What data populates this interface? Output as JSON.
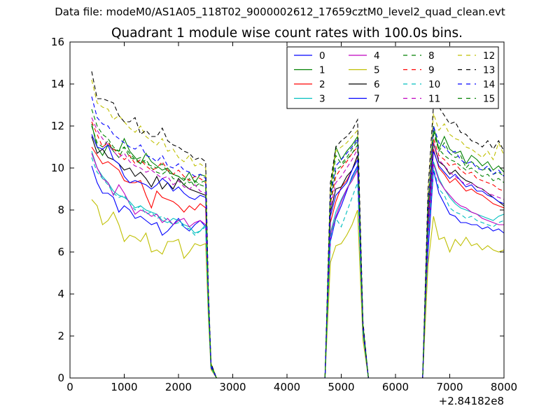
{
  "suptitle": "Data file: modeM0/AS1A05_118T02_9000002612_17659cztM0_level2_quad_clean.evt",
  "chart_data": {
    "type": "line",
    "title": "Quadrant 1 module wise count rates with 100.0s bins.",
    "xlabel": "",
    "ylabel": "",
    "x_offset_label": "+2.84182e8",
    "xlim": [
      0,
      8000
    ],
    "ylim": [
      0,
      16
    ],
    "xticks": [
      0,
      1000,
      2000,
      3000,
      4000,
      5000,
      6000,
      7000,
      8000
    ],
    "yticks": [
      0,
      2,
      4,
      6,
      8,
      10,
      12,
      14,
      16
    ],
    "legend_position": "top-right",
    "grid": false,
    "x": [
      400,
      500,
      600,
      700,
      800,
      900,
      1000,
      1100,
      1200,
      1300,
      1400,
      1500,
      1600,
      1700,
      1800,
      1900,
      2000,
      2100,
      2200,
      2300,
      2400,
      2500,
      2550,
      2600,
      2700,
      2800,
      4600,
      4700,
      4800,
      4900,
      5000,
      5100,
      5200,
      5300,
      5400,
      5500,
      6400,
      6500,
      6600,
      6700,
      6800,
      6900,
      7000,
      7100,
      7200,
      7300,
      7400,
      7500,
      7600,
      7700,
      7800,
      7900,
      8000
    ],
    "series": [
      {
        "name": "0",
        "color": "#0000ff",
        "dash": "solid",
        "values": [
          10.1,
          9.3,
          8.8,
          8.8,
          8.6,
          7.9,
          8.2,
          8.0,
          7.6,
          7.7,
          7.5,
          7.3,
          7.4,
          6.8,
          7.0,
          7.3,
          7.6,
          7.2,
          7.0,
          7.3,
          7.5,
          7.2,
          3.2,
          0.5,
          0,
          0,
          0,
          0,
          6.5,
          7.6,
          8.2,
          8.9,
          9.6,
          10.1,
          2.2,
          0,
          0,
          0,
          6.0,
          9.9,
          8.8,
          8.3,
          7.8,
          7.7,
          7.4,
          7.4,
          7.3,
          7.3,
          7.1,
          7.2,
          7.0,
          7.1,
          6.9
        ]
      },
      {
        "name": "1",
        "color": "#008000",
        "dash": "solid",
        "values": [
          12.1,
          11.0,
          10.6,
          11.1,
          10.9,
          10.8,
          11.4,
          10.8,
          10.5,
          10.2,
          10.7,
          10.3,
          10.1,
          9.9,
          10.0,
          9.7,
          9.6,
          9.4,
          9.8,
          9.3,
          9.7,
          9.6,
          3.8,
          0.6,
          0,
          0,
          0,
          0,
          8.9,
          11.0,
          10.4,
          10.8,
          11.1,
          11.5,
          2.4,
          0,
          0,
          0,
          8.0,
          12.0,
          10.9,
          11.5,
          10.9,
          10.7,
          10.8,
          10.2,
          10.6,
          10.4,
          10.1,
          10.3,
          9.9,
          10.1,
          9.8
        ]
      },
      {
        "name": "2",
        "color": "#ff0000",
        "dash": "solid",
        "values": [
          11.0,
          10.6,
          10.2,
          10.3,
          10.1,
          9.9,
          9.4,
          9.3,
          9.3,
          9.4,
          8.7,
          8.1,
          8.9,
          8.6,
          8.5,
          8.4,
          8.2,
          7.9,
          8.2,
          8.0,
          8.3,
          8.1,
          3.5,
          0.5,
          0,
          0,
          0,
          0,
          7.4,
          8.4,
          9.1,
          9.4,
          9.9,
          10.6,
          2.3,
          0,
          0,
          0,
          7.0,
          10.9,
          10.0,
          9.7,
          9.3,
          9.5,
          9.2,
          8.9,
          9.0,
          8.8,
          8.7,
          8.5,
          8.3,
          8.2,
          8.1
        ]
      },
      {
        "name": "3",
        "color": "#00bfbf",
        "dash": "solid",
        "values": [
          10.8,
          10.0,
          9.6,
          9.3,
          8.9,
          8.7,
          8.6,
          8.4,
          8.1,
          8.2,
          8.0,
          7.9,
          7.8,
          7.5,
          7.4,
          7.6,
          7.5,
          7.3,
          7.2,
          6.9,
          7.0,
          7.3,
          3.3,
          0.5,
          0,
          0,
          0,
          0,
          6.9,
          7.9,
          8.5,
          9.0,
          9.5,
          10.0,
          2.2,
          0,
          0,
          0,
          6.8,
          10.3,
          9.5,
          9.0,
          8.6,
          8.3,
          8.1,
          8.0,
          7.9,
          7.8,
          7.7,
          7.6,
          7.5,
          7.7,
          7.8
        ]
      },
      {
        "name": "4",
        "color": "#bf00bf",
        "dash": "solid",
        "values": [
          10.7,
          10.0,
          9.5,
          9.3,
          8.7,
          9.2,
          8.8,
          8.3,
          7.8,
          8.0,
          7.9,
          7.7,
          7.8,
          7.4,
          7.6,
          7.3,
          7.5,
          7.6,
          7.2,
          7.4,
          7.5,
          7.3,
          3.3,
          0.5,
          0,
          0,
          0,
          0,
          6.8,
          7.7,
          8.4,
          9.0,
          9.4,
          9.9,
          2.2,
          0,
          0,
          0,
          6.7,
          10.2,
          9.4,
          9.0,
          8.7,
          8.4,
          8.2,
          8.1,
          7.9,
          7.8,
          7.6,
          7.5,
          7.4,
          7.3,
          7.3
        ]
      },
      {
        "name": "5",
        "color": "#bfbf00",
        "dash": "solid",
        "values": [
          8.5,
          8.2,
          7.3,
          7.5,
          7.9,
          7.3,
          6.5,
          6.8,
          6.7,
          6.5,
          6.9,
          6.0,
          6.1,
          5.9,
          6.5,
          6.5,
          6.6,
          5.7,
          6.0,
          6.4,
          6.3,
          6.4,
          2.9,
          0.4,
          0,
          0,
          0,
          0,
          5.5,
          6.3,
          6.4,
          6.8,
          7.3,
          8.0,
          1.8,
          0,
          0,
          0,
          5.4,
          7.7,
          6.6,
          6.7,
          6.0,
          6.6,
          6.3,
          6.7,
          6.3,
          6.4,
          6.1,
          6.3,
          6.1,
          6.0,
          6.1
        ]
      },
      {
        "name": "6",
        "color": "#000000",
        "dash": "solid",
        "values": [
          11.5,
          10.7,
          10.9,
          10.5,
          10.4,
          10.2,
          9.9,
          10.0,
          9.6,
          9.8,
          9.5,
          9.1,
          9.6,
          9.0,
          9.3,
          9.0,
          9.5,
          9.2,
          9.0,
          8.9,
          8.8,
          8.7,
          3.7,
          0.5,
          0,
          0,
          0,
          0,
          7.9,
          9.0,
          9.1,
          9.6,
          9.9,
          10.6,
          2.3,
          0,
          0,
          0,
          7.5,
          11.2,
          10.3,
          10.1,
          9.7,
          9.9,
          9.6,
          9.4,
          9.3,
          9.1,
          9.0,
          8.8,
          8.6,
          8.4,
          8.2
        ]
      },
      {
        "name": "7",
        "color": "#0000ff",
        "dash": "solid",
        "values": [
          11.6,
          11.0,
          10.9,
          11.1,
          10.4,
          10.2,
          9.6,
          9.3,
          9.4,
          9.3,
          9.2,
          9.0,
          9.2,
          9.5,
          9.3,
          8.9,
          9.1,
          8.8,
          8.6,
          8.5,
          8.7,
          8.6,
          3.7,
          0.5,
          0,
          0,
          0,
          0,
          7.7,
          8.7,
          9.0,
          9.3,
          9.9,
          10.4,
          2.3,
          0,
          0,
          0,
          7.4,
          10.8,
          10.1,
          9.8,
          9.5,
          9.7,
          9.4,
          9.1,
          9.2,
          8.9,
          8.9,
          8.7,
          8.6,
          8.4,
          8.3
        ]
      },
      {
        "name": "8",
        "color": "#008000",
        "dash": "dashed",
        "values": [
          12.0,
          11.2,
          11.0,
          11.3,
          10.8,
          10.5,
          11.0,
          10.5,
          10.4,
          10.2,
          10.4,
          10.0,
          9.8,
          9.7,
          9.9,
          9.5,
          9.4,
          9.2,
          9.5,
          9.1,
          9.3,
          9.4,
          3.8,
          0.6,
          0,
          0,
          0,
          0,
          8.7,
          10.6,
          10.2,
          10.5,
          10.9,
          11.3,
          2.4,
          0,
          0,
          0,
          7.9,
          11.8,
          10.8,
          11.2,
          10.7,
          10.5,
          10.6,
          10.0,
          10.3,
          10.1,
          9.9,
          10.0,
          9.7,
          9.8,
          9.6
        ]
      },
      {
        "name": "9",
        "color": "#ff0000",
        "dash": "dashed",
        "values": [
          12.2,
          11.6,
          11.0,
          11.2,
          10.9,
          10.7,
          10.4,
          10.6,
          10.2,
          10.4,
          10.1,
          9.9,
          10.0,
          10.3,
          9.9,
          9.7,
          9.9,
          9.6,
          9.4,
          9.6,
          9.5,
          9.3,
          3.9,
          0.6,
          0,
          0,
          0,
          0,
          8.3,
          9.6,
          10.0,
          10.3,
          10.7,
          11.0,
          2.4,
          0,
          0,
          0,
          7.6,
          11.4,
          10.6,
          10.4,
          10.1,
          10.2,
          9.9,
          9.7,
          9.8,
          9.5,
          9.4,
          9.3,
          9.2,
          9.0,
          8.9
        ]
      },
      {
        "name": "10",
        "color": "#00bfbf",
        "dash": "dashed",
        "values": [
          10.5,
          9.8,
          9.5,
          9.2,
          8.8,
          8.6,
          8.7,
          8.3,
          8.0,
          8.2,
          7.8,
          7.9,
          7.6,
          7.7,
          7.5,
          7.3,
          7.4,
          7.2,
          7.1,
          6.8,
          7.0,
          7.2,
          3.2,
          0.5,
          0,
          0,
          0,
          0,
          6.7,
          7.6,
          7.2,
          7.9,
          8.6,
          9.3,
          2.1,
          0,
          0,
          0,
          6.6,
          10.0,
          9.0,
          8.7,
          8.1,
          7.9,
          7.8,
          7.6,
          7.7,
          7.5,
          7.4,
          7.3,
          7.2,
          7.4,
          7.5
        ]
      },
      {
        "name": "11",
        "color": "#bf00bf",
        "dash": "dashed",
        "values": [
          12.4,
          11.8,
          11.4,
          11.1,
          10.8,
          10.5,
          10.7,
          10.3,
          10.1,
          10.0,
          9.8,
          9.9,
          9.7,
          9.5,
          9.6,
          9.2,
          9.4,
          9.1,
          9.0,
          9.2,
          8.9,
          8.8,
          3.8,
          0.6,
          0,
          0,
          0,
          0,
          8.1,
          9.3,
          9.6,
          10.0,
          10.4,
          10.9,
          2.4,
          0,
          0,
          0,
          7.5,
          11.2,
          10.4,
          10.1,
          9.8,
          9.6,
          9.4,
          9.2,
          9.3,
          9.1,
          9.0,
          8.8,
          8.7,
          8.6,
          8.5
        ]
      },
      {
        "name": "12",
        "color": "#bfbf00",
        "dash": "dashed",
        "values": [
          14.2,
          13.1,
          12.9,
          12.8,
          12.3,
          12.5,
          12.2,
          11.9,
          11.7,
          12.0,
          11.5,
          11.3,
          11.1,
          11.4,
          10.8,
          10.9,
          10.5,
          10.3,
          10.6,
          10.1,
          10.2,
          10.0,
          4.2,
          0.7,
          0,
          0,
          0,
          0,
          9.0,
          10.8,
          11.0,
          11.2,
          11.5,
          11.8,
          2.6,
          0,
          0,
          0,
          8.8,
          12.6,
          11.8,
          12.1,
          11.6,
          11.4,
          11.3,
          11.0,
          10.9,
          10.7,
          10.5,
          10.8,
          10.4,
          11.2,
          10.6
        ]
      },
      {
        "name": "13",
        "color": "#000000",
        "dash": "dashed",
        "values": [
          14.6,
          13.3,
          13.3,
          13.2,
          13.1,
          12.5,
          12.2,
          12.2,
          12.4,
          11.6,
          11.8,
          11.5,
          11.5,
          11.9,
          11.3,
          11.1,
          11.0,
          10.8,
          10.7,
          10.4,
          10.5,
          10.3,
          4.3,
          0.7,
          0,
          0,
          0,
          0,
          9.3,
          11.0,
          11.3,
          11.5,
          11.8,
          12.3,
          2.7,
          0,
          0,
          0,
          9.0,
          13.0,
          12.9,
          12.5,
          12.1,
          12.2,
          11.7,
          11.6,
          11.3,
          11.2,
          11.0,
          11.3,
          10.9,
          11.3,
          10.8
        ]
      },
      {
        "name": "14",
        "color": "#0000ff",
        "dash": "dashed",
        "values": [
          13.4,
          12.4,
          12.1,
          12.0,
          11.6,
          11.4,
          11.2,
          11.0,
          10.9,
          11.1,
          10.6,
          10.5,
          10.3,
          10.6,
          10.1,
          10.0,
          10.2,
          9.9,
          9.8,
          9.6,
          9.7,
          9.5,
          4.0,
          0.6,
          0,
          0,
          0,
          0,
          8.6,
          10.1,
          10.4,
          10.7,
          11.0,
          11.4,
          2.5,
          0,
          0,
          0,
          8.2,
          12.0,
          11.2,
          11.0,
          10.7,
          10.8,
          10.4,
          10.2,
          10.3,
          10.0,
          9.9,
          10.1,
          9.7,
          9.9,
          9.6
        ]
      },
      {
        "name": "15",
        "color": "#008000",
        "dash": "dashed",
        "values": [
          12.8,
          12.0,
          11.6,
          11.4,
          11.0,
          10.8,
          11.0,
          10.7,
          10.4,
          10.5,
          10.2,
          10.1,
          10.0,
          10.2,
          9.8,
          9.7,
          9.6,
          9.5,
          9.3,
          9.4,
          9.2,
          9.1,
          3.9,
          0.6,
          0,
          0,
          0,
          0,
          8.4,
          9.9,
          10.1,
          10.4,
          10.7,
          11.1,
          2.5,
          0,
          0,
          0,
          8.0,
          11.6,
          10.9,
          10.6,
          10.4,
          10.3,
          10.1,
          9.9,
          10.0,
          9.8,
          9.6,
          9.7,
          9.4,
          9.5,
          9.3
        ]
      }
    ]
  }
}
